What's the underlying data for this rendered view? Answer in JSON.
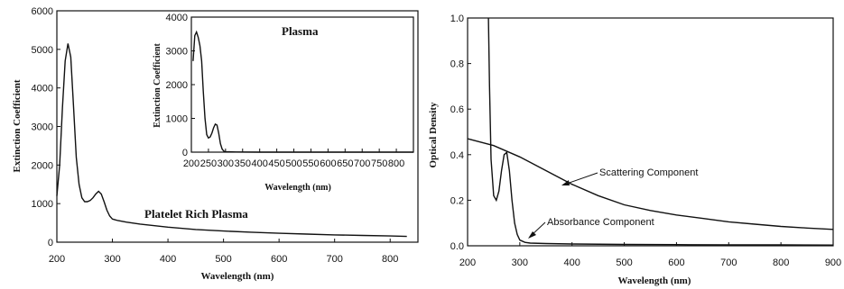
{
  "chart_data": [
    {
      "type": "line",
      "id": "left",
      "xlabel": "Wavelength (nm)",
      "ylabel": "Extinction Coefficient",
      "xlim": [
        200,
        850
      ],
      "ylim": [
        0,
        6000
      ],
      "xticks": [
        200,
        300,
        400,
        500,
        600,
        700,
        800
      ],
      "yticks": [
        0,
        1000,
        2000,
        3000,
        4000,
        5000,
        6000
      ],
      "series": [
        {
          "name": "Platelet Rich Plasma",
          "x": [
            200,
            205,
            210,
            215,
            220,
            225,
            230,
            235,
            240,
            245,
            250,
            255,
            260,
            265,
            270,
            275,
            280,
            285,
            290,
            295,
            300,
            310,
            325,
            350,
            400,
            450,
            500,
            550,
            600,
            650,
            700,
            750,
            800,
            830
          ],
          "y": [
            1200,
            2000,
            3500,
            4700,
            5150,
            4800,
            3500,
            2200,
            1500,
            1150,
            1050,
            1050,
            1080,
            1150,
            1250,
            1320,
            1250,
            1050,
            830,
            680,
            600,
            560,
            520,
            470,
            390,
            330,
            290,
            260,
            230,
            210,
            190,
            175,
            160,
            150
          ]
        }
      ],
      "annotations": [
        "Platelet Rich Plasma"
      ],
      "inset": {
        "title": "Plasma",
        "xlabel": "Wavelength (nm)",
        "ylabel": "Extinction Coefficient",
        "xlim": [
          200,
          850
        ],
        "ylim": [
          0,
          4000
        ],
        "xticks": [
          200,
          250,
          300,
          350,
          400,
          450,
          500,
          550,
          600,
          650,
          700,
          750,
          800
        ],
        "yticks": [
          0,
          1000,
          2000,
          3000,
          4000
        ],
        "series": [
          {
            "name": "Plasma",
            "x": [
              205,
              210,
              215,
              220,
              225,
              230,
              235,
              240,
              245,
              250,
              255,
              260,
              265,
              270,
              275,
              280,
              285,
              290,
              295,
              300,
              310,
              330,
              400,
              500,
              600,
              700,
              800,
              850
            ],
            "y": [
              2700,
              3450,
              3560,
              3400,
              3150,
              2700,
              1800,
              1000,
              520,
              420,
              450,
              560,
              720,
              830,
              800,
              560,
              250,
              90,
              30,
              15,
              10,
              5,
              0,
              0,
              0,
              0,
              0,
              0
            ]
          }
        ]
      }
    },
    {
      "type": "line",
      "id": "right",
      "xlabel": "Wavelength (nm)",
      "ylabel": "Optical Density",
      "xlim": [
        200,
        900
      ],
      "ylim": [
        0,
        1.0
      ],
      "xticks": [
        200,
        300,
        400,
        500,
        600,
        700,
        800,
        900
      ],
      "yticks": [
        0.0,
        0.2,
        0.4,
        0.6,
        0.8,
        1.0
      ],
      "series": [
        {
          "name": "Scattering Component",
          "x": [
            200,
            250,
            300,
            350,
            400,
            450,
            500,
            550,
            600,
            650,
            700,
            750,
            800,
            850,
            900
          ],
          "y": [
            0.47,
            0.44,
            0.39,
            0.33,
            0.27,
            0.22,
            0.18,
            0.155,
            0.135,
            0.12,
            0.105,
            0.095,
            0.085,
            0.078,
            0.072
          ]
        },
        {
          "name": "Absorbance Component",
          "x": [
            240,
            242,
            245,
            250,
            255,
            260,
            265,
            270,
            275,
            280,
            285,
            290,
            295,
            300,
            310,
            320,
            350,
            400,
            500,
            600,
            700,
            800,
            900
          ],
          "y": [
            1.0,
            0.7,
            0.38,
            0.22,
            0.2,
            0.24,
            0.33,
            0.4,
            0.41,
            0.33,
            0.2,
            0.1,
            0.05,
            0.025,
            0.015,
            0.012,
            0.01,
            0.008,
            0.006,
            0.005,
            0.004,
            0.004,
            0.003
          ]
        }
      ],
      "annotations": [
        "Scattering Component",
        "Absorbance Component"
      ]
    }
  ]
}
